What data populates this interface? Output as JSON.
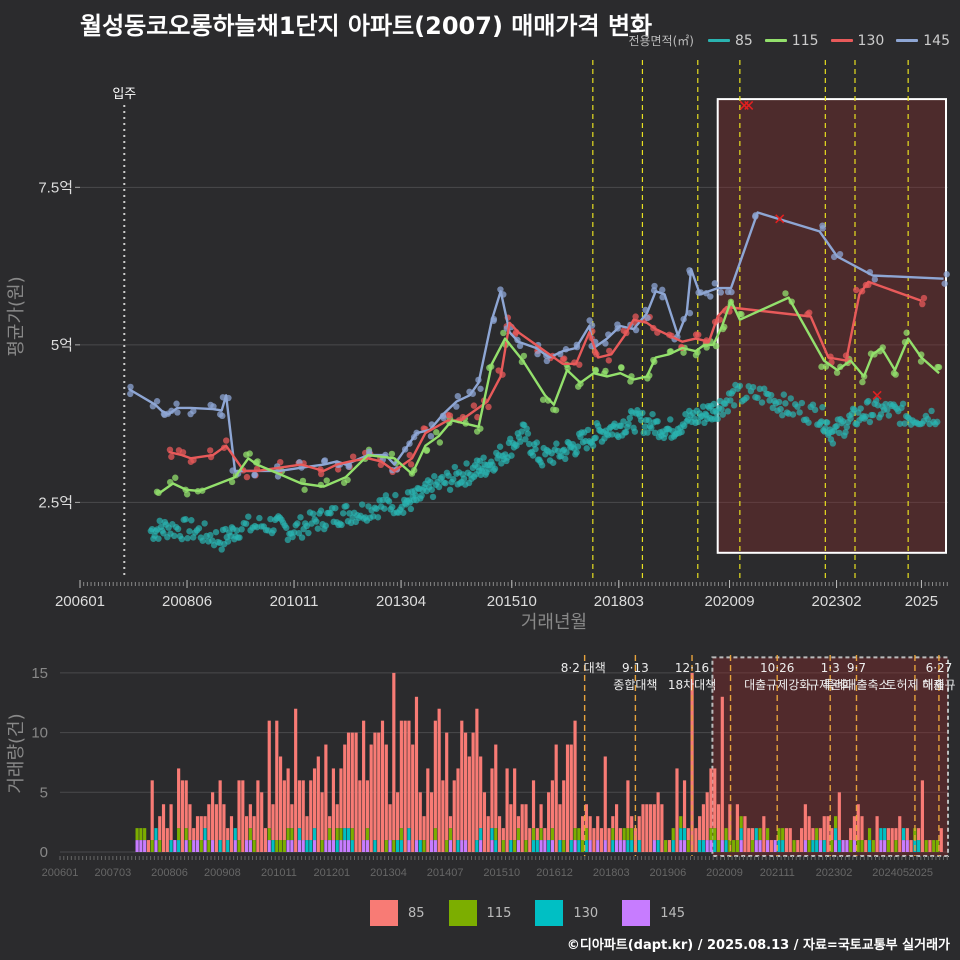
{
  "title": "월성동코오롱하늘채1단지 아파트(2007) 매매가격 변화",
  "credit": "©디아파트(dapt.kr) / 2025.08.13 / 자료=국토교통부 실거래가",
  "legend_title": "전용면적(㎡)",
  "colors": {
    "s85": "#2ab3b0",
    "s115": "#93e06c",
    "s130": "#e85a5a",
    "s145": "#8ea6d4",
    "bar85": "#f87b75",
    "bar115": "#7cae00",
    "bar130": "#00bfc4",
    "bar145": "#c77cff",
    "policy": "#e8e020",
    "policy_bottom": "#e6a23c",
    "highlight": "#8b2a2a"
  },
  "chart_data": [
    {
      "type": "line",
      "title": "월성동코오롱하늘채1단지 아파트(2007) 매매가격 변화",
      "xlabel": "거래년월",
      "ylabel": "평균가(원)",
      "x_ticks": [
        "200601",
        "200806",
        "201011",
        "201304",
        "201510",
        "201803",
        "202009",
        "202302",
        "2025"
      ],
      "y_ticks": [
        {
          "v": 2.5,
          "label": "2.5억"
        },
        {
          "v": 5,
          "label": "5억"
        },
        {
          "v": 7.5,
          "label": "7.5억"
        }
      ],
      "ylim": [
        1.3,
        9.6
      ],
      "xlim": [
        2006.0,
        2025.6
      ],
      "annotation_move_in": {
        "label": "입주",
        "x": 2007.0
      },
      "policy_lines": [
        2017.58,
        2018.7,
        2019.95,
        2020.9,
        2022.83,
        2023.5,
        2024.7
      ],
      "highlight": {
        "x0": 2020.4,
        "x1": 2025.6,
        "y0": 1.7,
        "y1": 8.9
      },
      "series": [
        {
          "name": "145",
          "values": [
            [
              2007.1,
              4.3
            ],
            [
              2007.7,
              4.05
            ],
            [
              2007.85,
              3.95
            ],
            [
              2008.0,
              3.9
            ],
            [
              2008.2,
              4.0
            ],
            [
              2008.5,
              4.0
            ],
            [
              2009.0,
              3.98
            ],
            [
              2009.2,
              3.96
            ],
            [
              2009.3,
              4.2
            ],
            [
              2009.5,
              3.0
            ],
            [
              2010.0,
              3.0
            ],
            [
              2010.5,
              3.0
            ],
            [
              2011.0,
              3.05
            ],
            [
              2011.5,
              3.1
            ],
            [
              2011.8,
              3.15
            ],
            [
              2012.0,
              3.1
            ],
            [
              2012.5,
              3.25
            ],
            [
              2012.9,
              3.25
            ],
            [
              2013.1,
              3.1
            ],
            [
              2013.4,
              3.4
            ],
            [
              2013.6,
              3.6
            ],
            [
              2013.9,
              3.65
            ],
            [
              2014.2,
              3.9
            ],
            [
              2014.5,
              4.1
            ],
            [
              2014.8,
              4.2
            ],
            [
              2015.0,
              4.4
            ],
            [
              2015.3,
              5.4
            ],
            [
              2015.5,
              5.85
            ],
            [
              2015.7,
              5.2
            ],
            [
              2015.9,
              5.05
            ],
            [
              2016.3,
              4.95
            ],
            [
              2016.6,
              4.8
            ],
            [
              2016.9,
              4.9
            ],
            [
              2017.2,
              4.95
            ],
            [
              2017.5,
              5.3
            ],
            [
              2017.6,
              4.95
            ],
            [
              2017.9,
              5.1
            ],
            [
              2018.2,
              5.3
            ],
            [
              2018.5,
              5.25
            ],
            [
              2018.8,
              5.5
            ],
            [
              2019.0,
              5.85
            ],
            [
              2019.2,
              5.8
            ],
            [
              2019.5,
              5.15
            ],
            [
              2019.7,
              5.5
            ],
            [
              2019.8,
              6.2
            ],
            [
              2020.0,
              5.8
            ],
            [
              2020.2,
              5.85
            ],
            [
              2020.4,
              5.9
            ],
            [
              2020.7,
              5.9
            ],
            [
              2021.3,
              7.1
            ],
            [
              2022.7,
              6.8
            ],
            [
              2023.1,
              6.4
            ],
            [
              2023.9,
              6.1
            ],
            [
              2025.5,
              6.05
            ]
          ]
        },
        {
          "name": "130",
          "values": [
            [
              2008.0,
              3.3
            ],
            [
              2008.3,
              3.25
            ],
            [
              2008.5,
              3.2
            ],
            [
              2009.0,
              3.25
            ],
            [
              2009.3,
              3.4
            ],
            [
              2009.7,
              3.0
            ],
            [
              2010.0,
              3.0
            ],
            [
              2010.5,
              3.05
            ],
            [
              2011.0,
              3.1
            ],
            [
              2011.5,
              3.0
            ],
            [
              2011.8,
              3.1
            ],
            [
              2012.1,
              3.15
            ],
            [
              2012.5,
              3.2
            ],
            [
              2012.8,
              3.15
            ],
            [
              2013.1,
              3.0
            ],
            [
              2013.5,
              3.2
            ],
            [
              2013.8,
              3.6
            ],
            [
              2014.3,
              3.8
            ],
            [
              2014.6,
              3.8
            ],
            [
              2014.9,
              3.95
            ],
            [
              2015.2,
              4.1
            ],
            [
              2015.5,
              4.5
            ],
            [
              2015.7,
              5.35
            ],
            [
              2015.9,
              5.2
            ],
            [
              2016.3,
              5.0
            ],
            [
              2016.6,
              4.85
            ],
            [
              2016.9,
              4.7
            ],
            [
              2017.2,
              4.7
            ],
            [
              2017.5,
              5.2
            ],
            [
              2017.7,
              4.8
            ],
            [
              2018.0,
              4.85
            ],
            [
              2018.3,
              5.15
            ],
            [
              2018.5,
              5.4
            ],
            [
              2018.8,
              5.35
            ],
            [
              2019.0,
              5.25
            ],
            [
              2019.3,
              5.15
            ],
            [
              2019.6,
              5.05
            ],
            [
              2019.9,
              5.1
            ],
            [
              2020.2,
              5.05
            ],
            [
              2020.4,
              5.45
            ],
            [
              2020.6,
              5.6
            ],
            [
              2022.5,
              5.45
            ],
            [
              2022.9,
              4.8
            ],
            [
              2023.3,
              4.75
            ],
            [
              2023.6,
              5.8
            ],
            [
              2023.8,
              6.0
            ],
            [
              2025.0,
              5.7
            ]
          ]
        },
        {
          "name": "115",
          "values": [
            [
              2007.8,
              2.65
            ],
            [
              2008.1,
              2.8
            ],
            [
              2008.4,
              2.7
            ],
            [
              2008.7,
              2.68
            ],
            [
              2009.5,
              2.9
            ],
            [
              2009.8,
              3.2
            ],
            [
              2010.0,
              3.1
            ],
            [
              2010.5,
              2.95
            ],
            [
              2011.0,
              2.8
            ],
            [
              2011.5,
              2.75
            ],
            [
              2012.0,
              2.9
            ],
            [
              2012.5,
              3.25
            ],
            [
              2013.1,
              3.2
            ],
            [
              2013.5,
              2.95
            ],
            [
              2013.8,
              3.4
            ],
            [
              2014.1,
              3.55
            ],
            [
              2014.4,
              3.8
            ],
            [
              2014.7,
              3.75
            ],
            [
              2015.0,
              3.7
            ],
            [
              2015.3,
              4.7
            ],
            [
              2015.6,
              5.1
            ],
            [
              2016.0,
              4.75
            ],
            [
              2016.5,
              4.2
            ],
            [
              2016.7,
              4.05
            ],
            [
              2017.0,
              4.6
            ],
            [
              2017.3,
              4.4
            ],
            [
              2017.6,
              4.55
            ],
            [
              2017.9,
              4.5
            ],
            [
              2018.2,
              4.55
            ],
            [
              2018.5,
              4.45
            ],
            [
              2018.8,
              4.5
            ],
            [
              2019.0,
              4.8
            ],
            [
              2019.3,
              4.85
            ],
            [
              2019.6,
              4.95
            ],
            [
              2019.9,
              4.9
            ],
            [
              2020.1,
              5.0
            ],
            [
              2020.3,
              5.0
            ],
            [
              2020.5,
              5.3
            ],
            [
              2020.7,
              5.7
            ],
            [
              2020.9,
              5.4
            ],
            [
              2022.0,
              5.75
            ],
            [
              2022.8,
              4.75
            ],
            [
              2023.1,
              4.6
            ],
            [
              2023.4,
              4.75
            ],
            [
              2023.7,
              4.5
            ],
            [
              2023.9,
              4.85
            ],
            [
              2024.1,
              4.95
            ],
            [
              2024.4,
              4.6
            ],
            [
              2024.7,
              5.1
            ],
            [
              2025.0,
              4.8
            ],
            [
              2025.4,
              4.55
            ]
          ]
        },
        {
          "name": "85",
          "values": [
            [
              2007.6,
              2.05
            ],
            [
              2008.0,
              2.1
            ],
            [
              2008.6,
              2.05
            ],
            [
              2009.2,
              1.9
            ],
            [
              2009.6,
              2.1
            ],
            [
              2010.3,
              2.15
            ],
            [
              2010.8,
              2.05
            ],
            [
              2011.3,
              2.2
            ],
            [
              2011.8,
              2.3
            ],
            [
              2012.3,
              2.35
            ],
            [
              2012.8,
              2.45
            ],
            [
              2013.3,
              2.5
            ],
            [
              2013.6,
              2.55
            ],
            [
              2014.0,
              2.75
            ],
            [
              2014.5,
              2.9
            ],
            [
              2014.9,
              3.0
            ],
            [
              2015.2,
              3.1
            ],
            [
              2015.6,
              3.3
            ],
            [
              2016.0,
              3.6
            ],
            [
              2016.4,
              3.2
            ],
            [
              2016.9,
              3.3
            ],
            [
              2017.3,
              3.45
            ],
            [
              2017.7,
              3.6
            ],
            [
              2018.1,
              3.7
            ],
            [
              2018.5,
              3.8
            ],
            [
              2018.9,
              3.75
            ],
            [
              2019.3,
              3.65
            ],
            [
              2019.7,
              3.8
            ],
            [
              2020.1,
              3.9
            ],
            [
              2020.4,
              4.0
            ],
            [
              2020.8,
              4.2
            ],
            [
              2021.5,
              4.2
            ],
            [
              2022.0,
              4.0
            ],
            [
              2022.7,
              3.9
            ],
            [
              2023.0,
              3.6
            ],
            [
              2023.4,
              3.8
            ],
            [
              2023.8,
              3.95
            ],
            [
              2024.3,
              3.95
            ],
            [
              2024.8,
              3.85
            ],
            [
              2025.4,
              3.9
            ]
          ]
        }
      ]
    },
    {
      "type": "bar",
      "ylabel": "거래량(건)",
      "x_ticks": [
        "200601",
        "200703",
        "200806",
        "200908",
        "201011",
        "201201",
        "201304",
        "201407",
        "201510",
        "201612",
        "201803",
        "201906",
        "202009",
        "202111",
        "202302",
        "202405",
        "2025"
      ],
      "y_ticks": [
        0,
        5,
        10,
        15
      ],
      "ylim": [
        0,
        16.5
      ],
      "xlim": [
        2006.0,
        2025.6
      ],
      "policy_lines": [
        2017.58,
        2018.7,
        2019.95,
        2020.8,
        2021.83,
        2023.0,
        2023.58,
        2024.87,
        2025.4
      ],
      "policy_labels": [
        {
          "x": 2017.55,
          "lines": [
            "8·2 대책"
          ]
        },
        {
          "x": 2018.7,
          "lines": [
            "9·13",
            "종합대책"
          ]
        },
        {
          "x": 2019.95,
          "lines": [
            "12·16",
            "18차대책"
          ]
        },
        {
          "x": 2021.83,
          "lines": [
            "10·26",
            "대출규제강화"
          ]
        },
        {
          "x": 2023.0,
          "lines": [
            "1·3",
            "규제완화"
          ]
        },
        {
          "x": 2023.58,
          "lines": [
            "9·7",
            "특례대출축소"
          ]
        },
        {
          "x": 2024.87,
          "lines": [
            "",
            "토허제 해제"
          ]
        },
        {
          "x": 2025.4,
          "lines": [
            "6·27",
            "대출규"
          ]
        }
      ],
      "highlight": {
        "x0": 2020.4,
        "x1": 2025.6,
        "y0": 0,
        "y1": 16.3
      },
      "series_names": [
        "85",
        "115",
        "130",
        "145"
      ],
      "peaks": [
        [
          2007.7,
          2
        ],
        [
          2008.0,
          6
        ],
        [
          2008.4,
          4
        ],
        [
          2008.6,
          7
        ],
        [
          2009.5,
          6
        ],
        [
          2010.0,
          6
        ],
        [
          2010.6,
          11
        ],
        [
          2011.2,
          12
        ],
        [
          2011.8,
          9
        ],
        [
          2012.3,
          10
        ],
        [
          2012.7,
          11
        ],
        [
          2013.1,
          11
        ],
        [
          2013.3,
          15
        ],
        [
          2013.8,
          13
        ],
        [
          2014.3,
          12
        ],
        [
          2014.8,
          11
        ],
        [
          2015.2,
          12
        ],
        [
          2015.6,
          9
        ],
        [
          2016.0,
          7
        ],
        [
          2016.4,
          6
        ],
        [
          2016.9,
          9
        ],
        [
          2017.3,
          11
        ],
        [
          2017.6,
          4
        ],
        [
          2018.0,
          8
        ],
        [
          2018.5,
          6
        ],
        [
          2019.2,
          5
        ],
        [
          2019.6,
          7
        ],
        [
          2019.95,
          15
        ],
        [
          2020.3,
          7
        ],
        [
          2020.6,
          13
        ],
        [
          2020.9,
          4
        ],
        [
          2021.5,
          3
        ],
        [
          2022.0,
          2
        ],
        [
          2022.4,
          4
        ],
        [
          2022.8,
          3
        ],
        [
          2023.2,
          5
        ],
        [
          2023.6,
          4
        ],
        [
          2024.0,
          3
        ],
        [
          2024.5,
          3
        ],
        [
          2025.0,
          6
        ],
        [
          2025.4,
          2
        ]
      ]
    }
  ],
  "bottom_legend": [
    {
      "label": "85",
      "color": "#f87b75"
    },
    {
      "label": "115",
      "color": "#7cae00"
    },
    {
      "label": "130",
      "color": "#00bfc4"
    },
    {
      "label": "145",
      "color": "#c77cff"
    }
  ]
}
